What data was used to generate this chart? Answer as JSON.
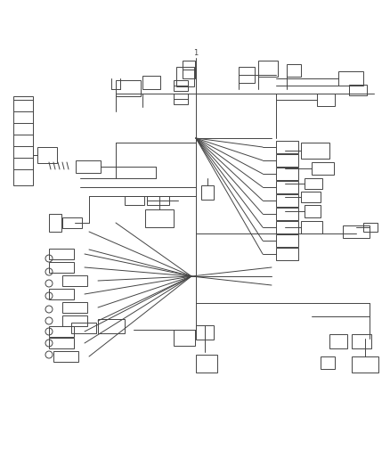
{
  "bg_color": "#ffffff",
  "lc": "#444444",
  "lw": 0.7,
  "fig_w": 4.38,
  "fig_h": 5.33,
  "dpi": 100
}
